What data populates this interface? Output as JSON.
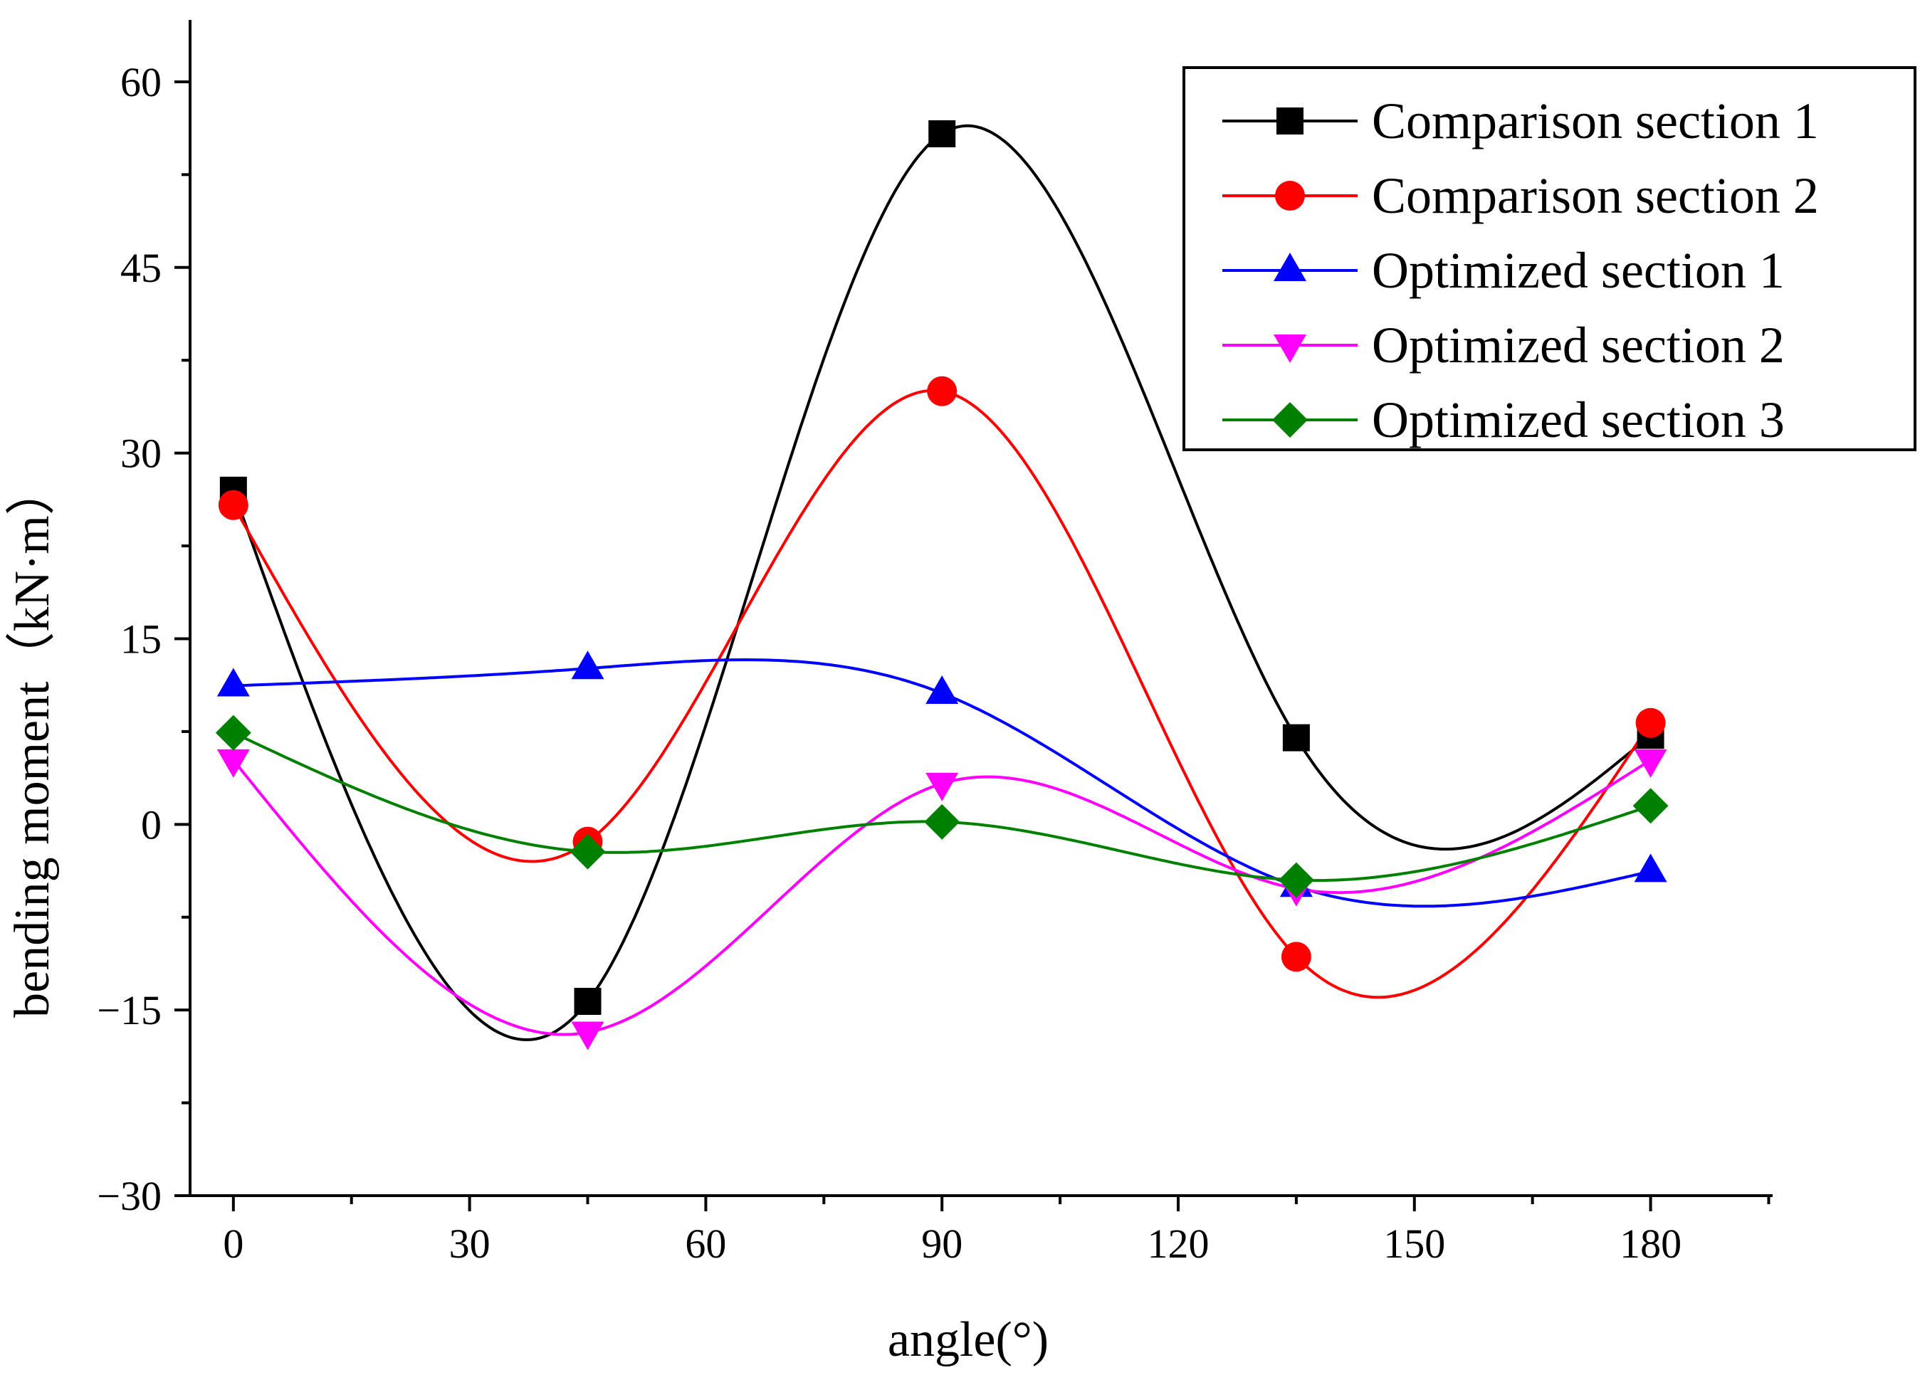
{
  "chart_data": {
    "type": "line",
    "title": "",
    "xlabel": "angle(°)",
    "ylabel": "bending moment（kN·m）",
    "xlim": [
      -5.5,
      195.5
    ],
    "ylim": [
      -30,
      65
    ],
    "x_ticks": [
      0,
      30,
      60,
      90,
      120,
      150,
      180
    ],
    "x_tick_labels": [
      "0",
      "30",
      "60",
      "90",
      "120",
      "150",
      "180"
    ],
    "x_minor_ticks": [
      15,
      45,
      75,
      105,
      135,
      165,
      195
    ],
    "y_ticks": [
      -30,
      -15,
      0,
      15,
      30,
      45,
      60
    ],
    "y_tick_labels": [
      "−30",
      "−15",
      "0",
      "15",
      "30",
      "45",
      "60"
    ],
    "y_minor_ticks": [
      -22.5,
      -7.5,
      7.5,
      22.5,
      37.5,
      52.5
    ],
    "x": [
      0,
      45,
      90,
      135,
      180
    ],
    "grid": false,
    "legend_position": "top-right",
    "series": [
      {
        "name": "Comparison section 1",
        "values": [
          27.0,
          -14.3,
          55.8,
          7.0,
          7.2
        ],
        "color": "#000000",
        "marker": "square"
      },
      {
        "name": "Comparison section 2",
        "values": [
          25.8,
          -1.4,
          35.0,
          -10.7,
          8.2
        ],
        "color": "#ff0000",
        "marker": "circle"
      },
      {
        "name": "Optimized section 1",
        "values": [
          11.2,
          12.6,
          10.6,
          -5.0,
          -3.8
        ],
        "color": "#0000ff",
        "marker": "triangle-up"
      },
      {
        "name": "Optimized section 2",
        "values": [
          5.2,
          -16.8,
          3.3,
          -5.2,
          5.2
        ],
        "color": "#ff00ff",
        "marker": "triangle-down"
      },
      {
        "name": "Optimized section 3",
        "values": [
          7.4,
          -2.2,
          0.2,
          -4.5,
          1.5
        ],
        "color": "#008000",
        "marker": "diamond"
      }
    ]
  }
}
